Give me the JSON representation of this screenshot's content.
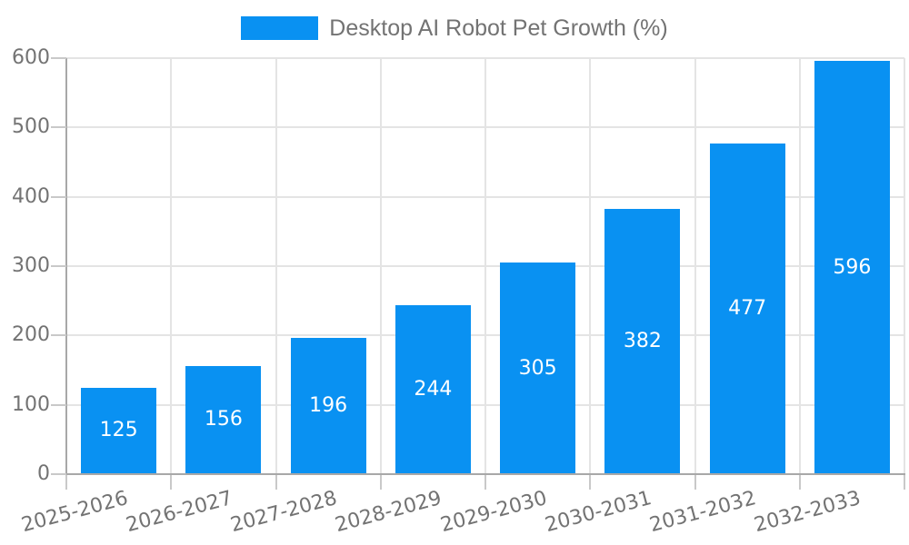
{
  "legend": {
    "label": "Desktop AI Robot Pet Growth (%)"
  },
  "colors": {
    "bar": "#0991f2",
    "grid": "#e4e4e4",
    "axis": "#a8a8a8",
    "tick": "#c9c9c9",
    "tick_label": "#737373",
    "value_label": "#ffffff",
    "background": "#ffffff"
  },
  "chart_data": {
    "type": "bar",
    "title": "Desktop AI Robot Pet Growth (%)",
    "categories": [
      "2025-2026",
      "2026-2027",
      "2027-2028",
      "2028-2029",
      "2029-2030",
      "2030-2031",
      "2031-2032",
      "2032-2033"
    ],
    "values": [
      125,
      156,
      196,
      244,
      305,
      382,
      477,
      596
    ],
    "xlabel": "",
    "ylabel": "",
    "ylim": [
      0,
      600
    ],
    "yticks": [
      0,
      100,
      200,
      300,
      400,
      500,
      600
    ],
    "grid": true,
    "legend_position": "top-center",
    "bar_value_labels": "inside-center",
    "x_tick_rotation_deg": -15
  }
}
